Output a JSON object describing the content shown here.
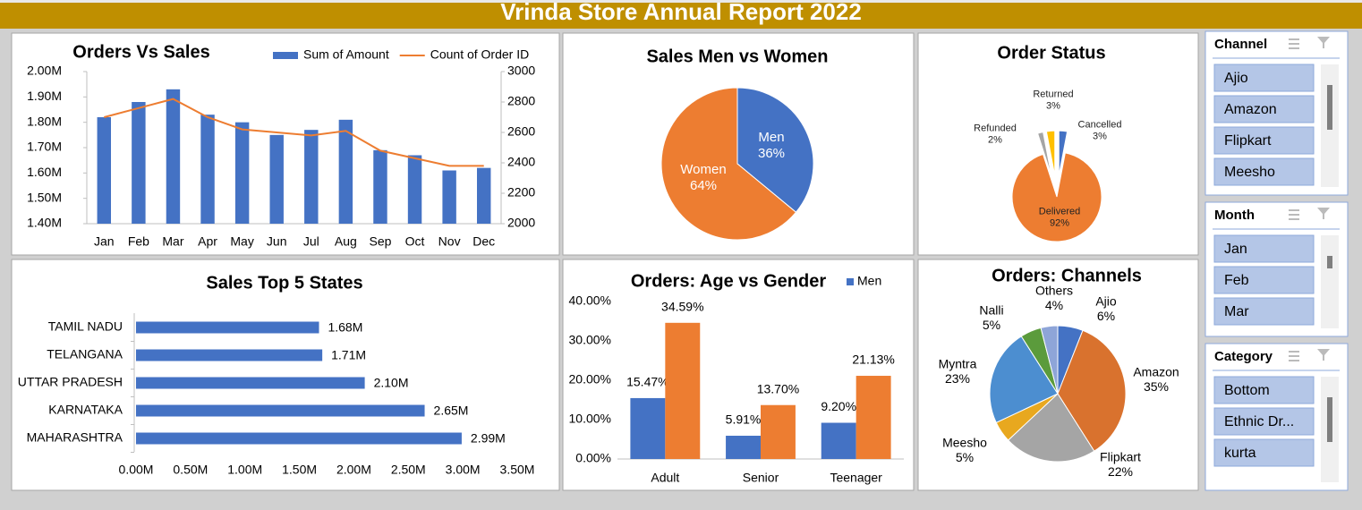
{
  "header": {
    "title": "Vrinda Store Annual Report 2022"
  },
  "chart_data": [
    {
      "type": "combo",
      "title": "Orders Vs Sales",
      "categories": [
        "Jan",
        "Feb",
        "Mar",
        "Apr",
        "May",
        "Jun",
        "Jul",
        "Aug",
        "Sep",
        "Oct",
        "Nov",
        "Dec"
      ],
      "series": [
        {
          "name": "Sum of Amount",
          "type": "bar",
          "color": "#4472c4",
          "values": [
            1820000,
            1880000,
            1930000,
            1830000,
            1800000,
            1750000,
            1770000,
            1810000,
            1690000,
            1670000,
            1610000,
            1620000
          ]
        },
        {
          "name": "Count of Order ID",
          "type": "line",
          "color": "#ed7d31",
          "axis": "y2",
          "values": [
            2700,
            2760,
            2820,
            2700,
            2620,
            2600,
            2580,
            2610,
            2480,
            2430,
            2380,
            2380
          ]
        }
      ],
      "ylim": [
        1400000,
        2000000
      ],
      "yticks": [
        {
          "value": 1400000,
          "label": "1.40M"
        },
        {
          "value": 1500000,
          "label": "1.50M"
        },
        {
          "value": 1600000,
          "label": "1.60M"
        },
        {
          "value": 1700000,
          "label": "1.70M"
        },
        {
          "value": 1800000,
          "label": "1.80M"
        },
        {
          "value": 1900000,
          "label": "1.90M"
        },
        {
          "value": 2000000,
          "label": "2.00M"
        }
      ],
      "y2lim": [
        2000,
        3000
      ],
      "y2ticks": [
        2000,
        2200,
        2400,
        2600,
        2800,
        3000
      ],
      "legend": "top-right"
    },
    {
      "type": "pie",
      "title": "Sales Men vs Women",
      "categories": [
        "Men",
        "Women"
      ],
      "values": [
        36,
        64
      ],
      "value_labels": [
        "36%",
        "64%"
      ],
      "colors": [
        "#4472c4",
        "#ed7d31"
      ]
    },
    {
      "type": "pie",
      "title": "Order Status",
      "categories": [
        "Cancelled",
        "Delivered",
        "Refunded",
        "Returned"
      ],
      "values": [
        3,
        92,
        2,
        3
      ],
      "value_labels": [
        "3%",
        "92%",
        "2%",
        "3%"
      ],
      "colors": [
        "#4472c4",
        "#ed7d31",
        "#a5a5a5",
        "#ffc000"
      ],
      "exploded": true
    },
    {
      "type": "barh",
      "title": "Sales Top 5 States",
      "categories": [
        "TAMIL NADU",
        "TELANGANA",
        "UTTAR PRADESH",
        "KARNATAKA",
        "MAHARASHTRA"
      ],
      "values": [
        1680000,
        1710000,
        2100000,
        2650000,
        2990000
      ],
      "value_labels": [
        "1.68M",
        "1.71M",
        "2.10M",
        "2.65M",
        "2.99M"
      ],
      "color": "#4472c4",
      "xlim": [
        0,
        3500000
      ],
      "xticks": [
        {
          "value": 0,
          "label": "0.00M"
        },
        {
          "value": 500000,
          "label": "0.50M"
        },
        {
          "value": 1000000,
          "label": "1.00M"
        },
        {
          "value": 1500000,
          "label": "1.50M"
        },
        {
          "value": 2000000,
          "label": "2.00M"
        },
        {
          "value": 2500000,
          "label": "2.50M"
        },
        {
          "value": 3000000,
          "label": "3.00M"
        },
        {
          "value": 3500000,
          "label": "3.50M"
        }
      ]
    },
    {
      "type": "bar",
      "title": "Orders: Age vs Gender",
      "categories": [
        "Adult",
        "Senior",
        "Teenager"
      ],
      "series": [
        {
          "name": "Men",
          "color": "#4472c4",
          "values": [
            15.47,
            5.91,
            9.2
          ],
          "value_labels": [
            "15.47%",
            "5.91%",
            "9.20%"
          ]
        },
        {
          "color": "#ed7d31",
          "values": [
            34.59,
            13.7,
            21.13
          ],
          "value_labels": [
            "34.59%",
            "13.70%",
            "21.13%"
          ]
        }
      ],
      "ylim": [
        0,
        40
      ],
      "yticks": [
        {
          "value": 0,
          "label": "0.00%"
        },
        {
          "value": 10,
          "label": "10.00%"
        },
        {
          "value": 20,
          "label": "20.00%"
        },
        {
          "value": 30,
          "label": "30.00%"
        },
        {
          "value": 40,
          "label": "40.00%"
        }
      ],
      "legend": "top-right"
    },
    {
      "type": "pie",
      "title": "Orders: Channels",
      "categories": [
        "Ajio",
        "Amazon",
        "Flipkart",
        "Meesho",
        "Myntra",
        "Nalli",
        "Others"
      ],
      "values": [
        6,
        35,
        22,
        5,
        23,
        5,
        4
      ],
      "value_labels": [
        "6%",
        "35%",
        "22%",
        "5%",
        "23%",
        "5%",
        "4%"
      ],
      "colors": [
        "#4472c4",
        "#d9722e",
        "#a5a5a5",
        "#e8a81f",
        "#4c8ed0",
        "#5b9b3c",
        "#8ea5d8"
      ]
    }
  ],
  "slicers": [
    {
      "title": "Channel",
      "items": [
        "Ajio",
        "Amazon",
        "Flipkart",
        "Meesho"
      ]
    },
    {
      "title": "Month",
      "items": [
        "Jan",
        "Feb",
        "Mar"
      ]
    },
    {
      "title": "Category",
      "items": [
        "Bottom",
        "Ethnic Dr...",
        "kurta"
      ]
    }
  ]
}
